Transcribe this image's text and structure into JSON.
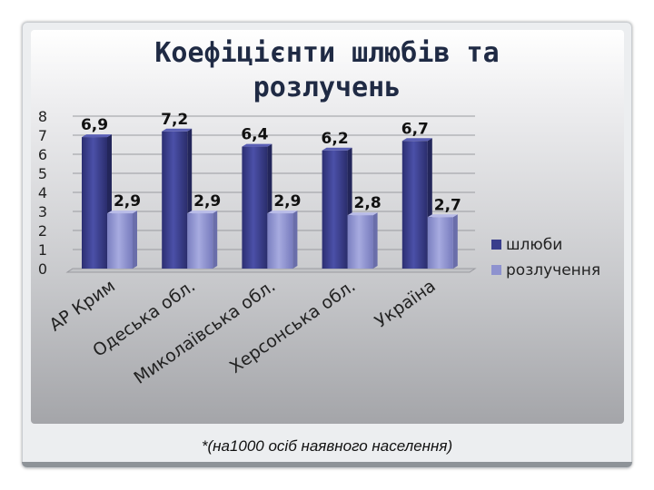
{
  "slide": {
    "title_line1": "Коефіцієнти шлюбів та",
    "title_line2": "розлучень",
    "footnote": "*(на1000 осіб наявного населення)"
  },
  "chart_data": {
    "type": "bar",
    "categories": [
      "АР Крим",
      "Одеська обл.",
      "Миколаївська обл.",
      "Херсонська обл.",
      "Україна"
    ],
    "series": [
      {
        "name": "шлюби",
        "values": [
          6.9,
          7.2,
          6.4,
          6.2,
          6.7
        ],
        "labels": [
          "6,9",
          "7,2",
          "6,4",
          "6,2",
          "6,7"
        ],
        "color": "#3a3e8c"
      },
      {
        "name": "розлучення",
        "values": [
          2.9,
          2.9,
          2.9,
          2.8,
          2.7
        ],
        "labels": [
          "2,9",
          "2,9",
          "2,9",
          "2,8",
          "2,7"
        ],
        "color": "#8e92cf"
      }
    ],
    "ylim": [
      0,
      8
    ],
    "yticks": [
      "0",
      "1",
      "2",
      "3",
      "4",
      "5",
      "6",
      "7",
      "8"
    ],
    "grid": true,
    "legend": "right"
  }
}
